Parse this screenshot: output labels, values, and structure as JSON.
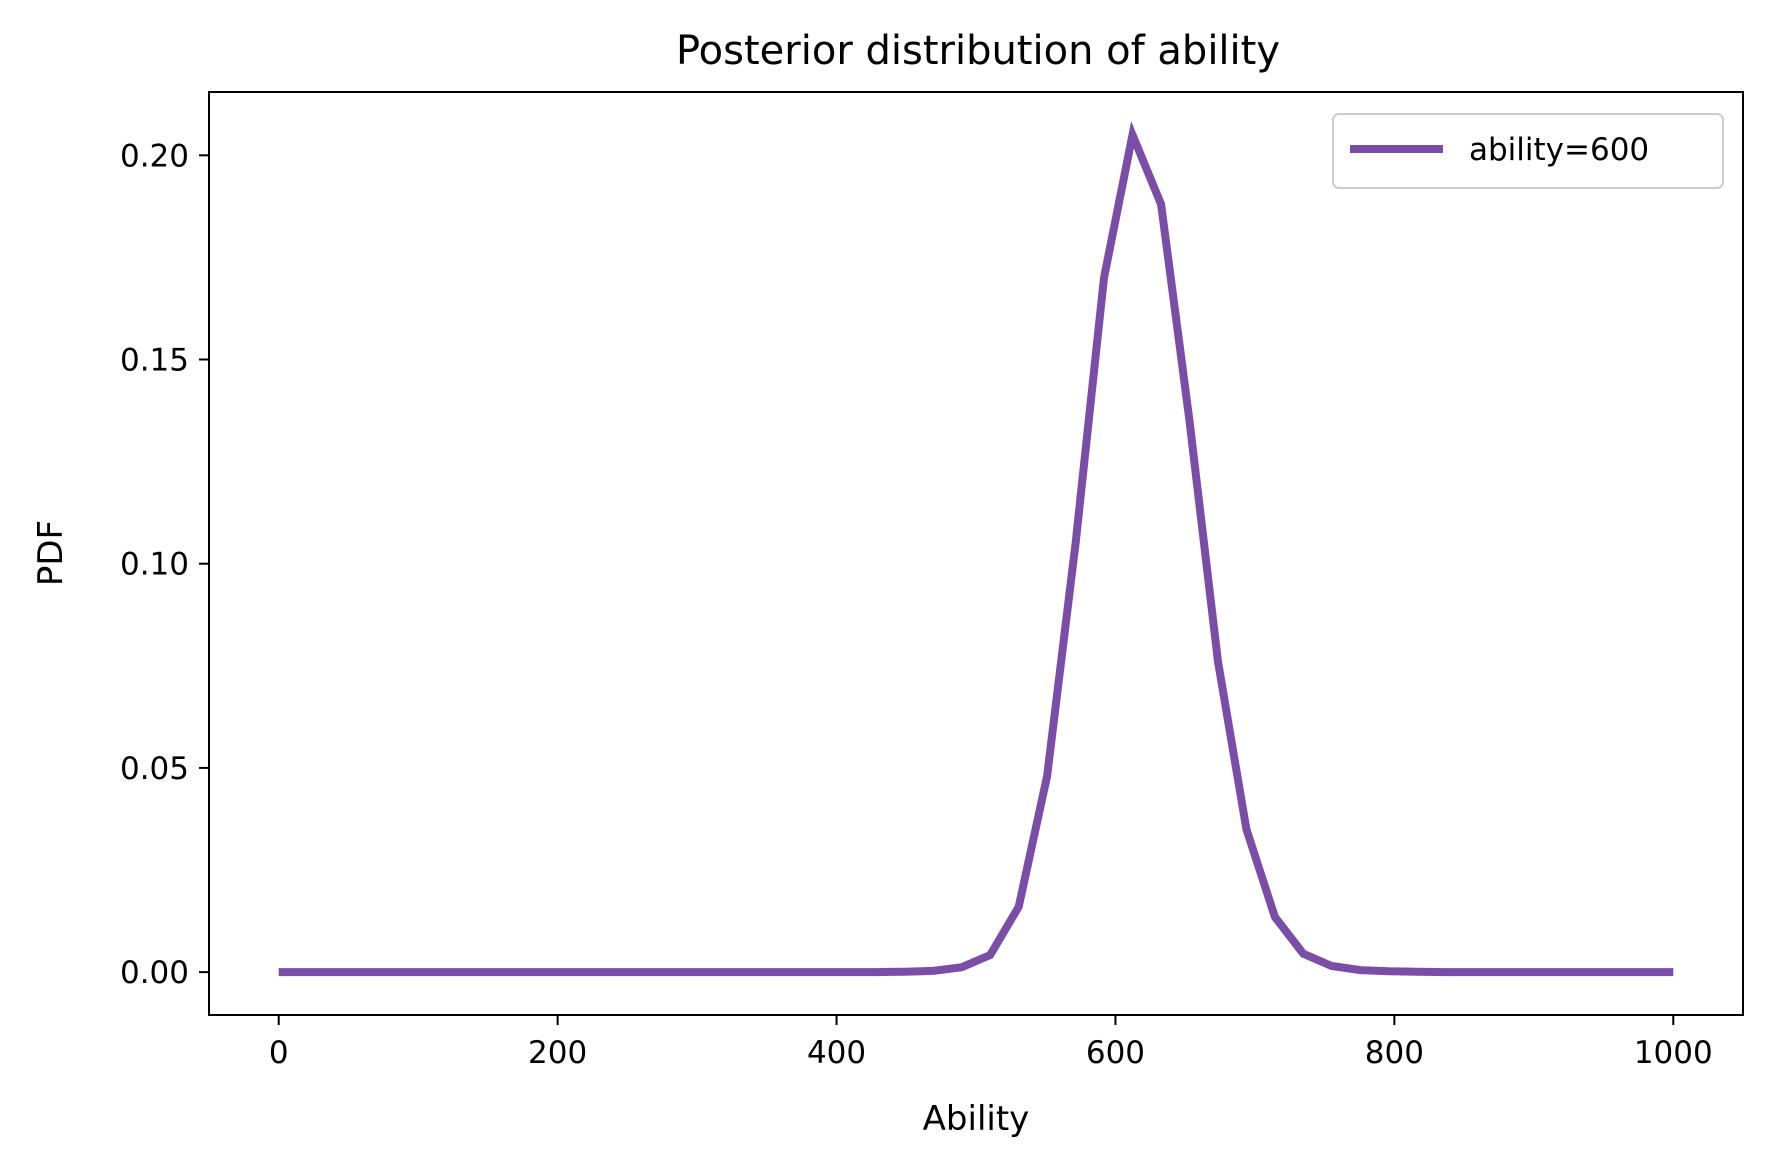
{
  "chart_data": {
    "type": "line",
    "title": "Posterior distribution of ability",
    "xlabel": "Ability",
    "ylabel": "PDF",
    "xlim": [
      -50,
      1050
    ],
    "ylim": [
      -0.0105,
      0.2155
    ],
    "xticks": [
      0,
      200,
      400,
      600,
      800,
      1000
    ],
    "xtick_labels": [
      "0",
      "200",
      "400",
      "600",
      "800",
      "1000"
    ],
    "yticks": [
      0.0,
      0.05,
      0.1,
      0.15,
      0.2
    ],
    "ytick_labels": [
      "0.00",
      "0.05",
      "0.10",
      "0.15",
      "0.20"
    ],
    "grid": false,
    "legend_position": "top-right",
    "series": [
      {
        "name": "ability=600",
        "color": "#7a4ea6",
        "x": [
          0,
          20.4,
          40.8,
          61.2,
          81.6,
          102.0,
          122.4,
          142.9,
          163.3,
          183.7,
          204.1,
          224.5,
          244.9,
          265.3,
          285.7,
          306.1,
          326.5,
          346.9,
          367.3,
          387.8,
          408.2,
          428.6,
          449.0,
          469.4,
          489.8,
          510.2,
          530.6,
          551.0,
          571.4,
          591.8,
          612.2,
          632.7,
          653.1,
          673.5,
          693.9,
          714.3,
          734.7,
          755.1,
          775.5,
          795.9,
          816.3,
          836.7,
          857.1,
          877.6,
          898.0,
          918.4,
          938.8,
          959.2,
          979.6,
          1000
        ],
        "y": [
          0,
          0,
          0,
          0,
          0,
          0,
          0,
          0,
          0,
          0,
          0,
          0,
          0,
          0,
          0,
          0,
          0,
          0,
          0,
          0,
          0,
          0,
          0.0001,
          0.0003,
          0.0012,
          0.0042,
          0.016,
          0.048,
          0.105,
          0.17,
          0.205,
          0.188,
          0.135,
          0.076,
          0.035,
          0.0135,
          0.0045,
          0.0015,
          0.0005,
          0.0002,
          0.0001,
          0,
          0,
          0,
          0,
          0,
          0,
          0,
          0,
          0
        ]
      }
    ]
  }
}
